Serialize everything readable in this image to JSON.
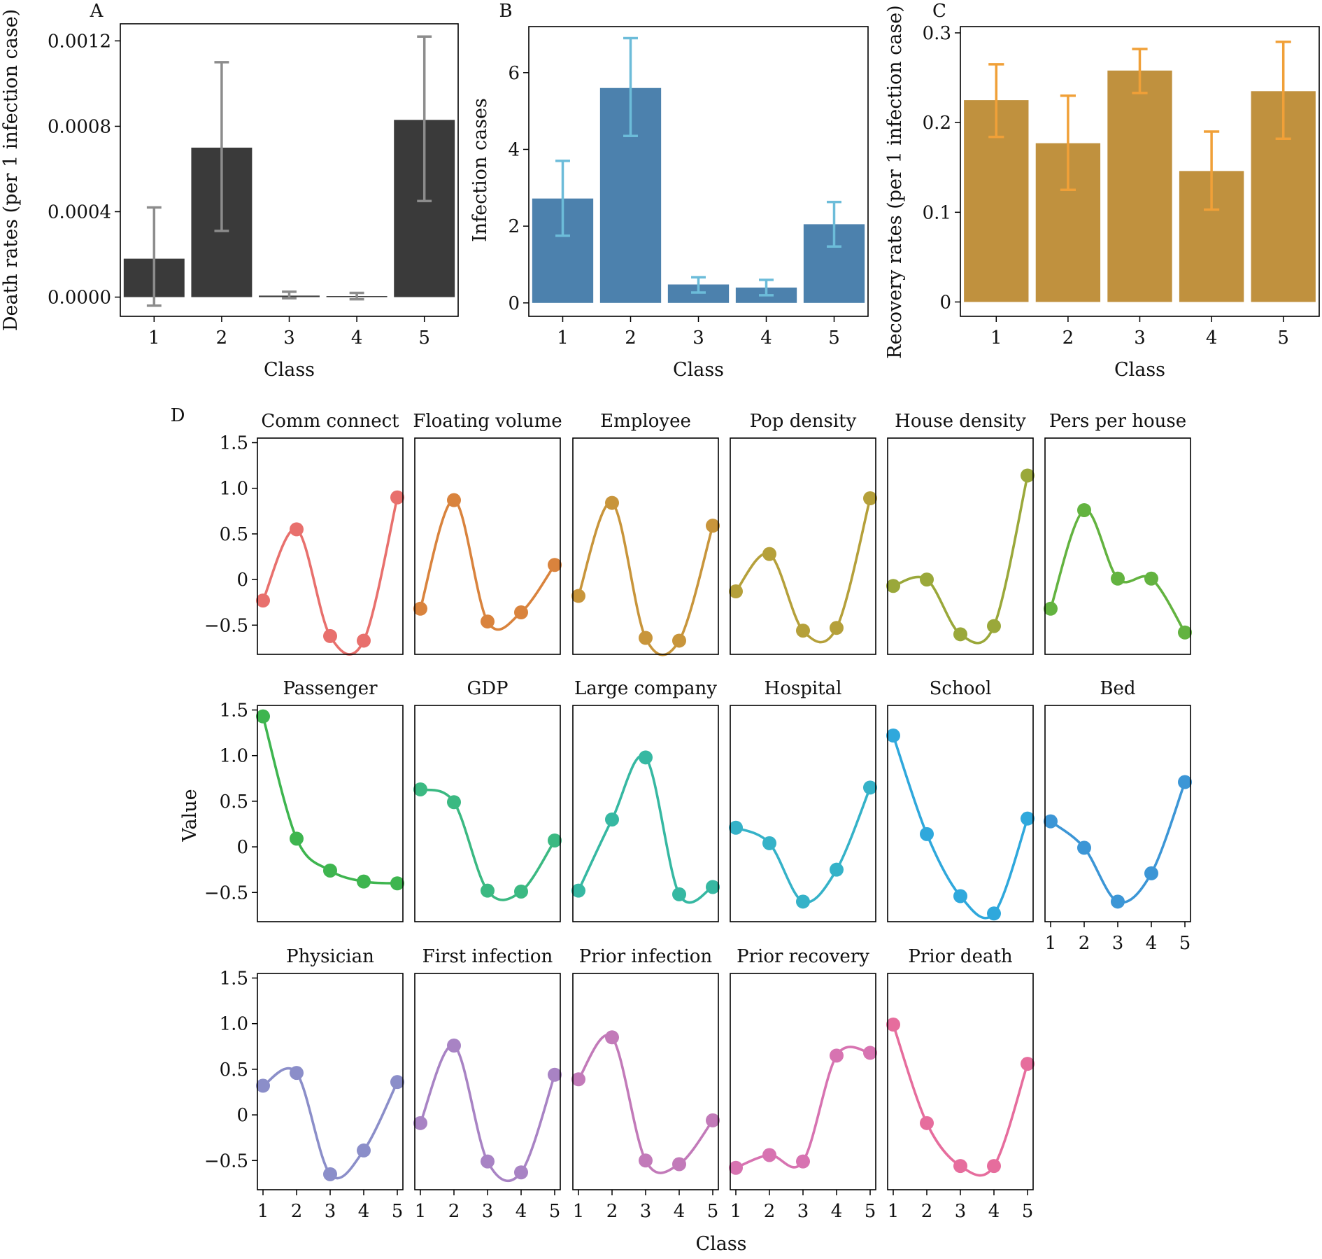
{
  "chart_data": [
    {
      "panel": "A",
      "type": "bar",
      "xlabel": "Class",
      "ylabel": "Death rates (per 1 infection case)",
      "categories": [
        "1",
        "2",
        "3",
        "4",
        "5"
      ],
      "values": [
        0.00018,
        0.0007,
        7e-06,
        5e-06,
        0.00083
      ],
      "error": [
        [
          -4e-05,
          0.00042
        ],
        [
          0.00031,
          0.0011
        ],
        [
          -5e-06,
          2.5e-05
        ],
        [
          -1e-05,
          2e-05
        ],
        [
          0.00045,
          0.00122
        ]
      ],
      "ylim": [
        -9e-05,
        0.00128
      ],
      "yticks": [
        0,
        0.0004,
        0.0008,
        0.0012
      ],
      "yticklabels": [
        "0.0000",
        "0.0004",
        "0.0008",
        "0.0012"
      ],
      "bar_color": "#3a3a3a",
      "err_color": "#8c8c8c"
    },
    {
      "panel": "B",
      "type": "bar",
      "xlabel": "Class",
      "ylabel": "Infection cases",
      "categories": [
        "1",
        "2",
        "3",
        "4",
        "5"
      ],
      "values": [
        2.72,
        5.6,
        0.48,
        0.4,
        2.05
      ],
      "error": [
        [
          1.75,
          3.7
        ],
        [
          4.35,
          6.9
        ],
        [
          0.27,
          0.67
        ],
        [
          0.2,
          0.6
        ],
        [
          1.47,
          2.63
        ]
      ],
      "ylim": [
        -0.35,
        7.2
      ],
      "yticks": [
        0,
        2,
        4,
        6
      ],
      "yticklabels": [
        "0",
        "2",
        "4",
        "6"
      ],
      "bar_color": "#4c81ad",
      "err_color": "#6cbcd9"
    },
    {
      "panel": "C",
      "type": "bar",
      "xlabel": "Class",
      "ylabel": "Recovery rates (per 1 infection case)",
      "categories": [
        "1",
        "2",
        "3",
        "4",
        "5"
      ],
      "values": [
        0.225,
        0.177,
        0.258,
        0.146,
        0.235
      ],
      "error": [
        [
          0.184,
          0.265
        ],
        [
          0.125,
          0.23
        ],
        [
          0.233,
          0.282
        ],
        [
          0.103,
          0.19
        ],
        [
          0.182,
          0.29
        ]
      ],
      "ylim": [
        -0.016,
        0.307
      ],
      "yticks": [
        0,
        0.1,
        0.2,
        0.3
      ],
      "yticklabels": [
        "0",
        "0.1",
        "0.2",
        "0.3"
      ],
      "bar_color": "#c0913e",
      "err_color": "#f0a038"
    },
    {
      "panel": "D",
      "type": "line",
      "xlabel": "Class",
      "ylabel": "Value",
      "x": [
        1,
        2,
        3,
        4,
        5
      ],
      "ylim": [
        -0.82,
        1.55
      ],
      "yticks": [
        -0.5,
        0,
        0.5,
        1.0,
        1.5
      ],
      "yticklabels": [
        "−0.5",
        "0",
        "0.5",
        "1.0",
        "1.5"
      ],
      "series": [
        {
          "name": "Comm connect",
          "color": "#e8706d",
          "values": [
            -0.23,
            0.55,
            -0.62,
            -0.67,
            0.9
          ]
        },
        {
          "name": "Floating volume",
          "color": "#d9833d",
          "values": [
            -0.32,
            0.87,
            -0.46,
            -0.36,
            0.16
          ]
        },
        {
          "name": "Employee",
          "color": "#c8953b",
          "values": [
            -0.18,
            0.84,
            -0.64,
            -0.67,
            0.59
          ]
        },
        {
          "name": "Pop density",
          "color": "#b5a03a",
          "values": [
            -0.13,
            0.28,
            -0.56,
            -0.53,
            0.89
          ]
        },
        {
          "name": "House density",
          "color": "#9aa83a",
          "values": [
            -0.07,
            0.0,
            -0.6,
            -0.51,
            1.14
          ]
        },
        {
          "name": "Pers per house",
          "color": "#63b340",
          "values": [
            -0.32,
            0.76,
            0.01,
            0.01,
            -0.58
          ]
        },
        {
          "name": "Passenger",
          "color": "#3eb54f",
          "values": [
            1.43,
            0.09,
            -0.26,
            -0.38,
            -0.4
          ]
        },
        {
          "name": "GDP",
          "color": "#3bb982",
          "values": [
            0.63,
            0.49,
            -0.48,
            -0.49,
            0.07
          ]
        },
        {
          "name": "Large company",
          "color": "#36b8a2",
          "values": [
            -0.48,
            0.3,
            0.98,
            -0.52,
            -0.44
          ]
        },
        {
          "name": "Hospital",
          "color": "#35b2c8",
          "values": [
            0.21,
            0.04,
            -0.6,
            -0.25,
            0.65
          ]
        },
        {
          "name": "School",
          "color": "#2fa8dc",
          "values": [
            1.22,
            0.14,
            -0.54,
            -0.73,
            0.31
          ]
        },
        {
          "name": "Bed",
          "color": "#3c96d6",
          "values": [
            0.28,
            -0.01,
            -0.6,
            -0.29,
            0.71
          ]
        },
        {
          "name": "Physician",
          "color": "#8b8ec9",
          "values": [
            0.32,
            0.46,
            -0.65,
            -0.39,
            0.36
          ]
        },
        {
          "name": "First infection",
          "color": "#a883c4",
          "values": [
            -0.09,
            0.76,
            -0.51,
            -0.63,
            0.44
          ]
        },
        {
          "name": "Prior infection",
          "color": "#c27ab9",
          "values": [
            0.39,
            0.85,
            -0.5,
            -0.54,
            -0.06
          ]
        },
        {
          "name": "Prior recovery",
          "color": "#d773b1",
          "values": [
            -0.58,
            -0.44,
            -0.51,
            0.65,
            0.68
          ]
        },
        {
          "name": "Prior death",
          "color": "#e66d9d",
          "values": [
            0.99,
            -0.09,
            -0.56,
            -0.56,
            0.56
          ]
        }
      ]
    }
  ],
  "panel_labels": {
    "a": "A",
    "b": "B",
    "c": "C",
    "d": "D"
  }
}
